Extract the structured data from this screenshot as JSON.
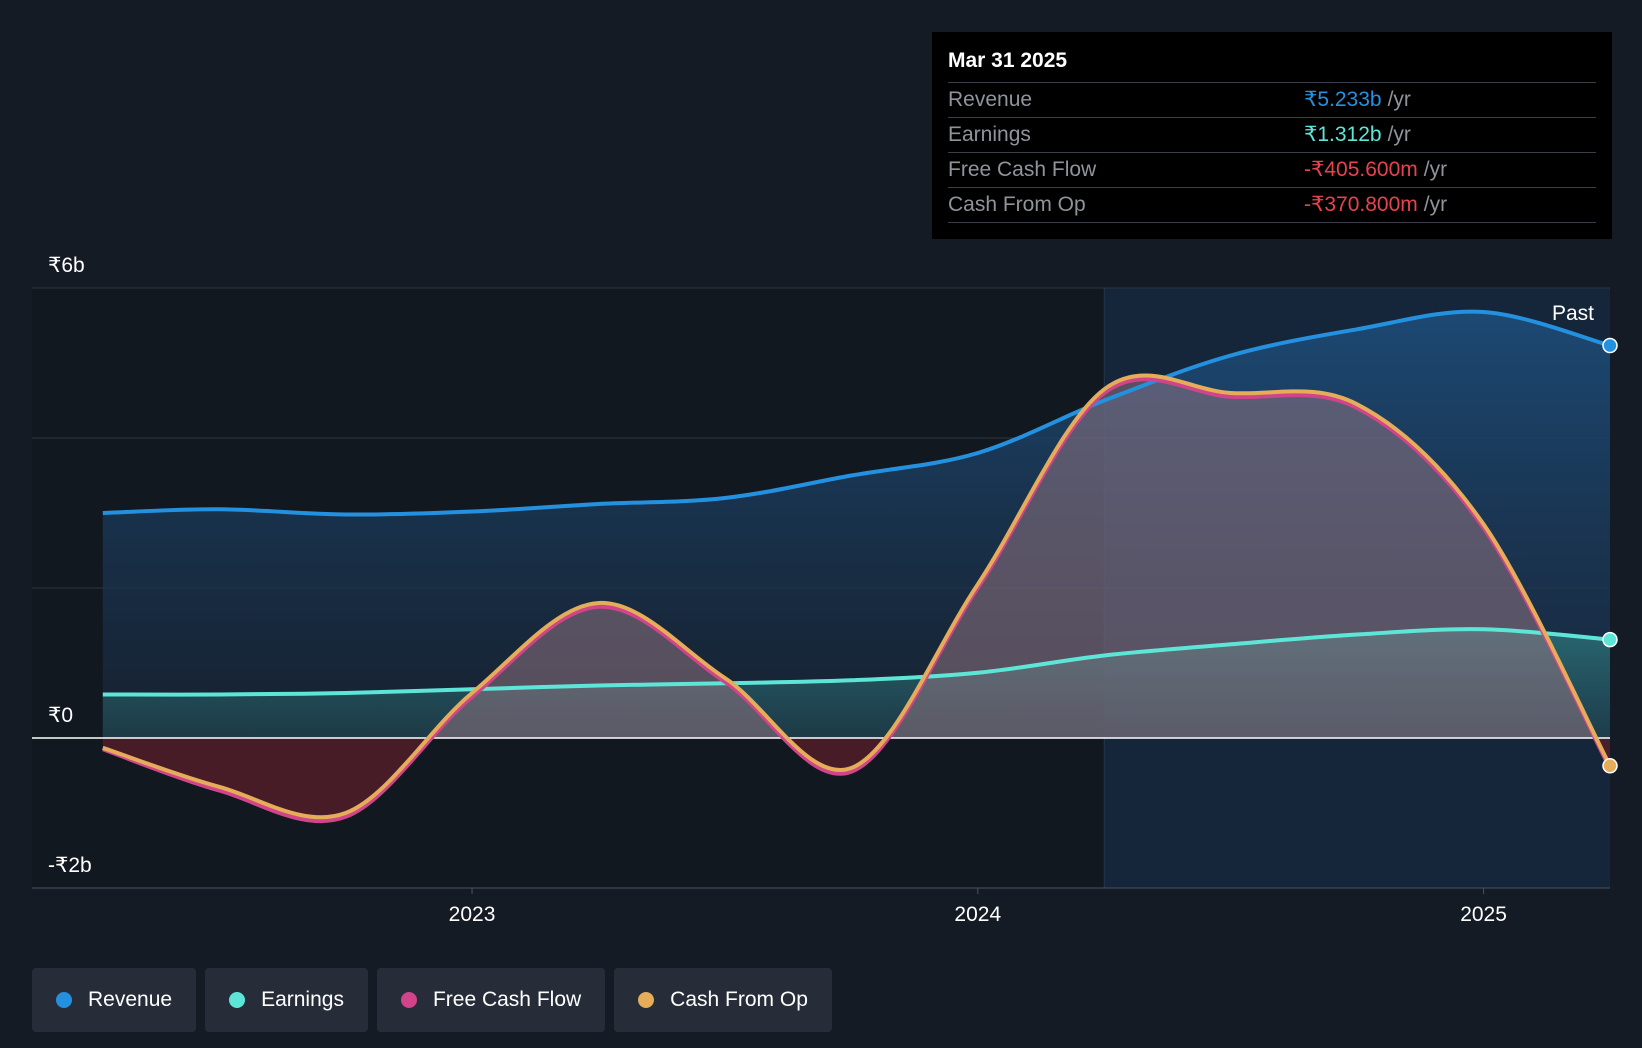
{
  "tooltip": {
    "date": "Mar 31 2025",
    "rows": [
      {
        "label": "Revenue",
        "value": "₹5.233b",
        "unit": "/yr",
        "color": "#2491e0"
      },
      {
        "label": "Earnings",
        "value": "₹1.312b",
        "unit": "/yr",
        "color": "#5de6d7"
      },
      {
        "label": "Free Cash Flow",
        "value": "-₹405.600m",
        "unit": "/yr",
        "color": "#e8424f"
      },
      {
        "label": "Cash From Op",
        "value": "-₹370.800m",
        "unit": "/yr",
        "color": "#e8424f"
      }
    ]
  },
  "legend": [
    {
      "label": "Revenue",
      "color": "#2491e0"
    },
    {
      "label": "Earnings",
      "color": "#5de6d7"
    },
    {
      "label": "Free Cash Flow",
      "color": "#d1448a"
    },
    {
      "label": "Cash From Op",
      "color": "#e5ac5a"
    }
  ],
  "chart_data": {
    "type": "line",
    "title": "",
    "xlabel": "",
    "ylabel": "",
    "y_tick_labels": [
      "₹6b",
      "₹0",
      "-₹2b"
    ],
    "x_tick_labels": [
      "2023",
      "2024",
      "2025"
    ],
    "ylim": [
      -2,
      6
    ],
    "past_label": "Past",
    "x": [
      2022.27,
      2022.5,
      2022.75,
      2023.0,
      2023.25,
      2023.5,
      2023.75,
      2024.0,
      2024.25,
      2024.5,
      2024.75,
      2025.0,
      2025.25
    ],
    "series": [
      {
        "name": "Revenue",
        "color": "#2491e0",
        "values": [
          3.0,
          3.05,
          2.98,
          3.02,
          3.12,
          3.2,
          3.5,
          3.8,
          4.5,
          5.1,
          5.45,
          5.68,
          5.233
        ]
      },
      {
        "name": "Earnings",
        "color": "#5de6d7",
        "values": [
          0.58,
          0.58,
          0.6,
          0.65,
          0.7,
          0.73,
          0.77,
          0.87,
          1.1,
          1.25,
          1.38,
          1.45,
          1.312
        ]
      },
      {
        "name": "Free Cash Flow",
        "color": "#d1448a",
        "values": [
          -0.15,
          -0.7,
          -1.05,
          0.55,
          1.75,
          0.75,
          -0.45,
          2.0,
          4.6,
          4.55,
          4.4,
          2.8,
          -0.4056
        ]
      },
      {
        "name": "Cash From Op",
        "color": "#e5ac5a",
        "values": [
          -0.13,
          -0.65,
          -1.0,
          0.6,
          1.8,
          0.8,
          -0.4,
          2.05,
          4.65,
          4.6,
          4.45,
          2.85,
          -0.3708
        ]
      }
    ]
  }
}
